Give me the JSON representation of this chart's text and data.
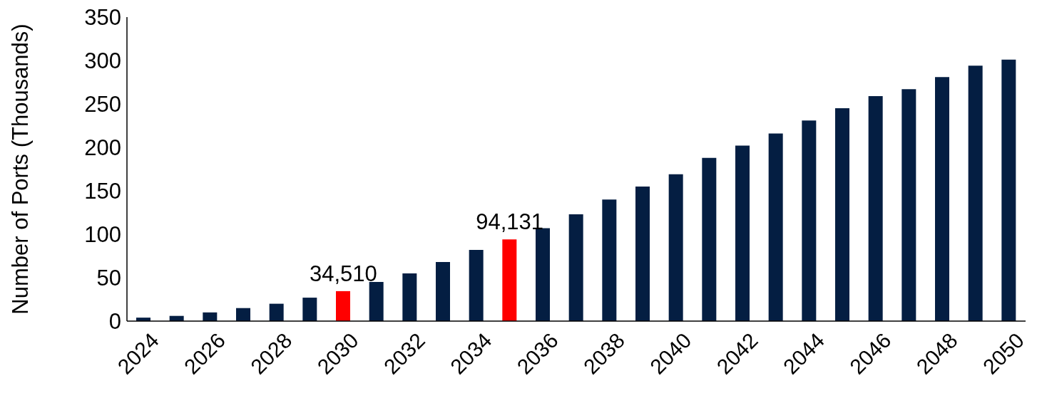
{
  "chart_data": {
    "type": "bar",
    "ylabel": "Number of Ports (Thousands)",
    "categories": [
      "2024",
      null,
      "2026",
      null,
      "2028",
      null,
      "2030",
      null,
      "2032",
      null,
      "2034",
      null,
      "2036",
      null,
      "2038",
      null,
      "2040",
      null,
      "2042",
      null,
      "2044",
      null,
      "2046",
      null,
      "2048",
      null,
      "2050"
    ],
    "values": [
      4,
      6,
      10,
      15,
      20,
      27,
      34.5,
      45,
      55,
      68,
      82,
      94.1,
      107,
      123,
      140,
      155,
      169,
      188,
      202,
      216,
      231,
      245,
      259,
      267,
      281,
      294,
      301
    ],
    "colors": [
      "#041e42",
      "#041e42",
      "#041e42",
      "#041e42",
      "#041e42",
      "#041e42",
      "#ff0000",
      "#041e42",
      "#041e42",
      "#041e42",
      "#041e42",
      "#ff0000",
      "#041e42",
      "#041e42",
      "#041e42",
      "#041e42",
      "#041e42",
      "#041e42",
      "#041e42",
      "#041e42",
      "#041e42",
      "#041e42",
      "#041e42",
      "#041e42",
      "#041e42",
      "#041e42",
      "#041e42"
    ],
    "annotations": [
      {
        "text": "34,510",
        "x": "2030",
        "y": 34.5
      },
      {
        "text": "94,131",
        "y": 94.1
      }
    ],
    "ylim": [
      0,
      350
    ],
    "yticks": [
      0,
      50,
      100,
      150,
      200,
      250,
      300,
      350
    ],
    "grid": false,
    "legend": false
  }
}
